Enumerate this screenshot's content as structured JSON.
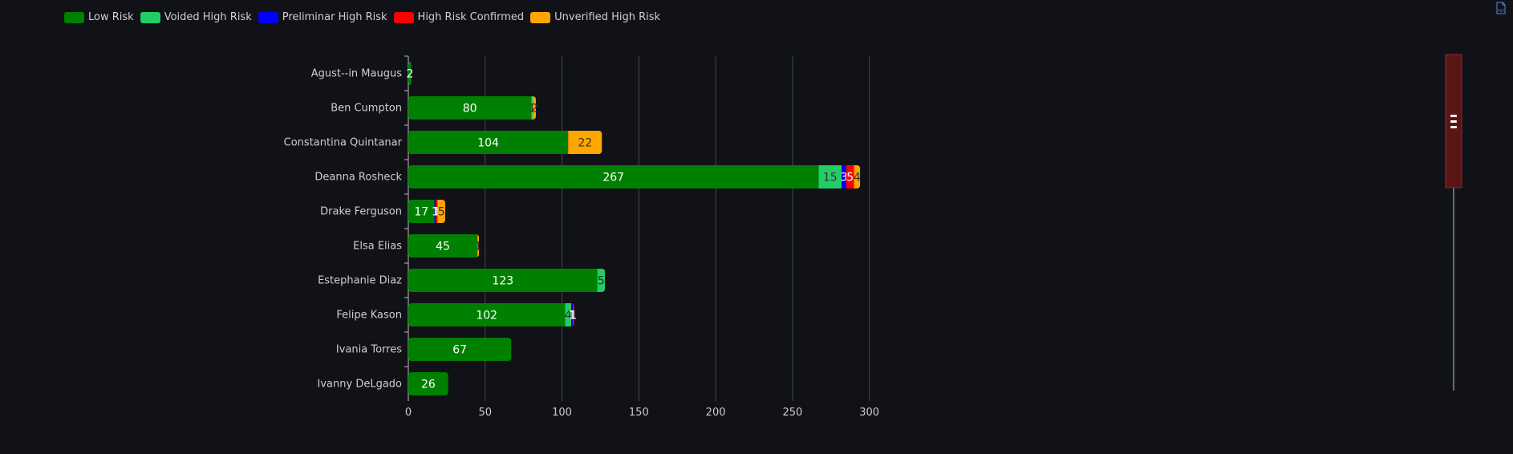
{
  "chart_data": {
    "type": "bar",
    "orientation": "horizontal",
    "stacked": true,
    "categories": [
      "Agust--in Maugus",
      "Ben Cumpton",
      "Constantina Quintanar",
      "Deanna Rosheck",
      "Drake Ferguson",
      "Elsa Elias",
      "Estephanie Diaz",
      "Felipe Kason",
      "Ivania Torres",
      "Ivanny DeLgado"
    ],
    "series": [
      {
        "name": "Low Risk",
        "color": "#008000",
        "label_color": "#ffffff",
        "values": [
          2,
          80,
          104,
          267,
          17,
          45,
          123,
          102,
          67,
          26
        ]
      },
      {
        "name": "Voided High Risk",
        "color": "#22cc66",
        "label_color": "#333333",
        "values": [
          0,
          1,
          0,
          15,
          0,
          0,
          5,
          4,
          0,
          0
        ]
      },
      {
        "name": "Preliminar High Risk",
        "color": "#0000ff",
        "label_color": "#ffffff",
        "values": [
          0,
          0,
          0,
          3,
          1,
          0,
          0,
          1,
          0,
          0
        ]
      },
      {
        "name": "High Risk Confirmed",
        "color": "#ff0000",
        "label_color": "#ffffff",
        "values": [
          0,
          0,
          0,
          5,
          1,
          0,
          0,
          1,
          0,
          0
        ]
      },
      {
        "name": "Unverified High Risk",
        "color": "#ffa500",
        "label_color": "#333333",
        "values": [
          0,
          2,
          22,
          4,
          5,
          1,
          0,
          0,
          0,
          0
        ]
      }
    ],
    "xlim": [
      0,
      300
    ],
    "xticks": [
      0,
      50,
      100,
      150,
      200,
      250,
      300
    ],
    "grid": true,
    "legend_position": "top-left"
  },
  "icons": {
    "export": "pdf-export-icon",
    "scroll_handle": "scroll-handle-icon"
  }
}
